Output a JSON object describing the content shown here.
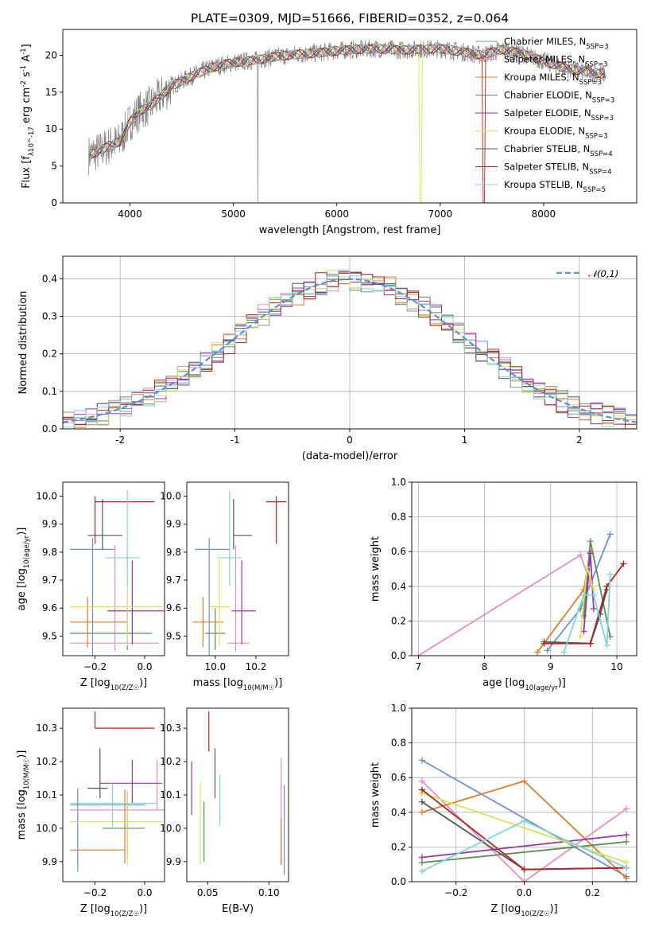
{
  "title": "PLATE=0309, MJD=51666, FIBERID=0352, z=0.064",
  "chart_data": [
    {
      "id": "spectrum",
      "type": "line",
      "xlabel": "wavelength [Angstrom, rest frame]",
      "ylabel": "Flux [f_λ10^-17 erg cm^-2 s^-1 A^-1]",
      "xlim": [
        3350,
        8900
      ],
      "ylim": [
        0,
        23.5
      ],
      "xticks": [
        4000,
        5000,
        6000,
        7000,
        8000
      ],
      "yticks": [
        0,
        5,
        10,
        15,
        20
      ],
      "legend_position": "right",
      "continuum": {
        "x": [
          3600,
          3700,
          3800,
          3900,
          4000,
          4100,
          4200,
          4300,
          4400,
          4600,
          4800,
          5000,
          5200,
          5400,
          5600,
          5800,
          6000,
          6200,
          6400,
          6600,
          6800,
          7000,
          7200,
          7400,
          7600,
          7800,
          8000,
          8200,
          8400,
          8600
        ],
        "y": [
          6.5,
          7.0,
          7.8,
          8.3,
          11.0,
          12.5,
          13.2,
          14.5,
          15.8,
          17.2,
          18.4,
          19.0,
          19.3,
          19.8,
          20.1,
          20.3,
          20.6,
          20.8,
          20.9,
          20.7,
          20.8,
          20.9,
          20.5,
          20.0,
          20.8,
          20.2,
          19.2,
          18.3,
          17.8,
          17.4
        ]
      },
      "series": [
        {
          "name": "Chabrier MILES, N_SSP=3",
          "color": "#6b8fd6"
        },
        {
          "name": "Salpeter MILES, N_SSP=3",
          "color": "#e68fbf"
        },
        {
          "name": "Kroupa MILES, N_SSP=3",
          "color": "#e07b28"
        },
        {
          "name": "Chabrier ELODIE, N_SSP=3",
          "color": "#5e8c5a"
        },
        {
          "name": "Salpeter ELODIE, N_SSP=3",
          "color": "#9933aa"
        },
        {
          "name": "Kroupa ELODIE, N_SSP=3",
          "color": "#d4e657"
        },
        {
          "name": "Chabrier STELIB, N_SSP=4",
          "color": "#555555"
        },
        {
          "name": "Salpeter STELIB, N_SSP=4",
          "color": "#b22222"
        },
        {
          "name": "Kroupa STELIB, N_SSP=5",
          "color": "#7fd6d6"
        }
      ]
    },
    {
      "id": "residuals",
      "type": "histogram",
      "xlabel": "(data-model)/error",
      "ylabel": "Normed distribution",
      "xlim": [
        -2.5,
        2.5
      ],
      "ylim": [
        0,
        0.46
      ],
      "xticks": [
        -2,
        -1,
        0,
        1,
        2
      ],
      "yticks": [
        0.0,
        0.1,
        0.2,
        0.3,
        0.4
      ],
      "grid": true,
      "legend_position": "top-right",
      "reference_curve": "𝒩(0,1)",
      "bin_width": 0.1
    },
    {
      "id": "age-vs-Z",
      "type": "errorbar",
      "xlabel": "Z [log10(Z/Z☉)]",
      "ylabel": "age [log10(age/yr)]",
      "xlim": [
        -0.33,
        0.08
      ],
      "ylim": [
        9.43,
        10.05
      ],
      "xticks": [
        -0.2,
        0.0
      ],
      "yticks": [
        9.5,
        9.6,
        9.7,
        9.8,
        9.9,
        10.0
      ],
      "points": [
        {
          "color": "#6b8fd6",
          "x": -0.21,
          "xerr": [
            0.09,
            0.09
          ],
          "y": 9.81,
          "yerr": [
            0.4,
            0.04
          ]
        },
        {
          "color": "#e68fbf",
          "x": -0.12,
          "xerr": [
            0.18,
            0.18
          ],
          "y": 9.475,
          "yerr": [
            0.03,
            0.35
          ]
        },
        {
          "color": "#e07b28",
          "x": -0.23,
          "xerr": [
            0.07,
            0.16
          ],
          "y": 9.55,
          "yerr": [
            0.09,
            0.09
          ]
        },
        {
          "color": "#5e8c5a",
          "x": -0.07,
          "xerr": [
            0.23,
            0.1
          ],
          "y": 9.51,
          "yerr": [
            0.06,
            0.09
          ]
        },
        {
          "color": "#9933aa",
          "x": -0.05,
          "xerr": [
            0.1,
            0.13
          ],
          "y": 9.59,
          "yerr": [
            0.12,
            0.18
          ]
        },
        {
          "color": "#d4e657",
          "x": -0.07,
          "xerr": [
            0.23,
            0.14
          ],
          "y": 9.605,
          "yerr": [
            0.14,
            0.17
          ]
        },
        {
          "color": "#555555",
          "x": -0.17,
          "xerr": [
            0.06,
            0.08
          ],
          "y": 9.86,
          "yerr": [
            0.05,
            0.13
          ]
        },
        {
          "color": "#b22222",
          "x": -0.2,
          "xerr": [
            0.0,
            0.24
          ],
          "y": 9.98,
          "yerr": [
            0.15,
            0.02
          ]
        },
        {
          "color": "#7fd6d6",
          "x": -0.07,
          "xerr": [
            0.09,
            0.05
          ],
          "y": 9.78,
          "yerr": [
            0.1,
            0.24
          ]
        }
      ]
    },
    {
      "id": "age-vs-mass",
      "type": "errorbar",
      "xlabel": "mass [log10(M/M☉)]",
      "ylabel": "",
      "xlim": [
        9.86,
        10.36
      ],
      "ylim": [
        9.43,
        10.05
      ],
      "xticks": [
        10.0,
        10.2
      ],
      "yticks": [
        9.5,
        9.6,
        9.7,
        9.8,
        9.9,
        10.0
      ],
      "points": [
        {
          "color": "#6b8fd6",
          "x": 9.97,
          "xerr": [
            0.07,
            0.1
          ],
          "y": 9.81,
          "yerr": [
            0.4,
            0.04
          ]
        },
        {
          "color": "#e68fbf",
          "x": 10.1,
          "xerr": [
            0.04,
            0.07
          ],
          "y": 9.475,
          "yerr": [
            0.03,
            0.35
          ]
        },
        {
          "color": "#e07b28",
          "x": 9.94,
          "xerr": [
            0.05,
            0.1
          ],
          "y": 9.55,
          "yerr": [
            0.09,
            0.09
          ]
        },
        {
          "color": "#5e8c5a",
          "x": 10.0,
          "xerr": [
            0.05,
            0.05
          ],
          "y": 9.51,
          "yerr": [
            0.06,
            0.09
          ]
        },
        {
          "color": "#9933aa",
          "x": 10.13,
          "xerr": [
            0.05,
            0.07
          ],
          "y": 9.59,
          "yerr": [
            0.12,
            0.18
          ]
        },
        {
          "color": "#d4e657",
          "x": 10.02,
          "xerr": [
            0.05,
            0.05
          ],
          "y": 9.605,
          "yerr": [
            0.14,
            0.17
          ]
        },
        {
          "color": "#555555",
          "x": 10.09,
          "xerr": [
            0.0,
            0.09
          ],
          "y": 9.86,
          "yerr": [
            0.05,
            0.13
          ]
        },
        {
          "color": "#b22222",
          "x": 10.3,
          "xerr": [
            0.05,
            0.05
          ],
          "y": 9.98,
          "yerr": [
            0.15,
            0.02
          ]
        },
        {
          "color": "#7fd6d6",
          "x": 10.07,
          "xerr": [
            0.06,
            0.06
          ],
          "y": 9.78,
          "yerr": [
            0.1,
            0.24
          ]
        }
      ]
    },
    {
      "id": "massweight-vs-age",
      "type": "line",
      "xlabel": "age [log10(age/yr)]",
      "ylabel": "mass weight",
      "xlim": [
        6.9,
        10.3
      ],
      "ylim": [
        0,
        1
      ],
      "xticks": [
        7,
        8,
        9,
        10
      ],
      "yticks": [
        0.0,
        0.2,
        0.4,
        0.6,
        0.8,
        1.0
      ],
      "grid": true,
      "series": [
        {
          "color": "#6b8fd6",
          "x": [
            8.95,
            9.45,
            9.9
          ],
          "y": [
            0.03,
            0.27,
            0.7
          ]
        },
        {
          "color": "#e68fbf",
          "x": [
            7.0,
            9.45,
            9.6
          ],
          "y": [
            0.0,
            0.58,
            0.42
          ]
        },
        {
          "color": "#e07b28",
          "x": [
            8.8,
            9.5,
            9.6
          ],
          "y": [
            0.02,
            0.38,
            0.6
          ]
        },
        {
          "color": "#5e8c5a",
          "x": [
            9.5,
            9.6,
            9.9
          ],
          "y": [
            0.23,
            0.66,
            0.11
          ]
        },
        {
          "color": "#9933aa",
          "x": [
            9.5,
            9.6,
            9.65
          ],
          "y": [
            0.14,
            0.59,
            0.27
          ]
        },
        {
          "color": "#d4e657",
          "x": [
            9.45,
            9.55,
            9.65
          ],
          "y": [
            0.11,
            0.51,
            0.38
          ]
        },
        {
          "color": "#555555",
          "x": [
            8.9,
            9.6,
            9.75,
            9.85
          ],
          "y": [
            0.08,
            0.07,
            0.24,
            0.38
          ]
        },
        {
          "color": "#b22222",
          "x": [
            8.9,
            9.6,
            9.85,
            10.1
          ],
          "y": [
            0.07,
            0.07,
            0.4,
            0.53
          ]
        },
        {
          "color": "#7fd6d6",
          "x": [
            9.2,
            9.5,
            9.65,
            9.85,
            9.9
          ],
          "y": [
            0.02,
            0.35,
            0.35,
            0.06,
            0.47
          ]
        }
      ]
    },
    {
      "id": "mass-vs-Z",
      "type": "errorbar",
      "xlabel": "Z [log10(Z/Z☉)]",
      "ylabel": "mass [log10(M/M☉)]",
      "xlim": [
        -0.33,
        0.08
      ],
      "ylim": [
        9.84,
        10.36
      ],
      "xticks": [
        -0.2,
        0.0
      ],
      "yticks": [
        9.9,
        10.0,
        10.1,
        10.2,
        10.3
      ],
      "points": [
        {
          "color": "#6b8fd6",
          "x": -0.27,
          "xerr": [
            0.03,
            0.27
          ],
          "y": 10.07,
          "yerr": [
            0.2,
            0.05
          ]
        },
        {
          "color": "#e68fbf",
          "x": 0.05,
          "xerr": [
            0.35,
            0.03
          ],
          "y": 10.055,
          "yerr": [
            0.0,
            0.15
          ]
        },
        {
          "color": "#e07b28",
          "x": -0.08,
          "xerr": [
            0.22,
            0.0
          ],
          "y": 9.935,
          "yerr": [
            0.04,
            0.18
          ]
        },
        {
          "color": "#5e8c5a",
          "x": -0.07,
          "xerr": [
            0.1,
            0.07
          ],
          "y": 10.0,
          "yerr": [
            0.09,
            0.11
          ]
        },
        {
          "color": "#9933aa",
          "x": -0.05,
          "xerr": [
            0.13,
            0.12
          ],
          "y": 10.135,
          "yerr": [
            0.06,
            0.07
          ]
        },
        {
          "color": "#d4e657",
          "x": -0.07,
          "xerr": [
            0.23,
            0.14
          ],
          "y": 10.02,
          "yerr": [
            0.13,
            0.09
          ]
        },
        {
          "color": "#555555",
          "x": -0.18,
          "xerr": [
            0.05,
            0.03
          ],
          "y": 10.12,
          "yerr": [
            0.03,
            0.12
          ]
        },
        {
          "color": "#b22222",
          "x": -0.2,
          "xerr": [
            0.0,
            0.24
          ],
          "y": 10.3,
          "yerr": [
            0.0,
            0.05
          ]
        },
        {
          "color": "#7fd6d6",
          "x": -0.13,
          "xerr": [
            0.17,
            0.18
          ],
          "y": 10.075,
          "yerr": [
            0.07,
            0.06
          ]
        }
      ]
    },
    {
      "id": "mass-vs-ebv",
      "type": "errorbar",
      "xlabel": "E(B-V)",
      "ylabel": "",
      "xlim": [
        0.033,
        0.116
      ],
      "ylim": [
        9.84,
        10.36
      ],
      "xticks": [
        0.05,
        0.1
      ],
      "yticks": [
        9.9,
        10.0,
        10.1,
        10.2,
        10.3
      ],
      "points": [
        {
          "color": "#6b8fd6",
          "x": 0.1125,
          "xerr": [
            0,
            0
          ],
          "y": 10.0,
          "yerr": [
            0.14,
            0.13
          ]
        },
        {
          "color": "#e68fbf",
          "x": 0.11,
          "xerr": [
            0,
            0
          ],
          "y": 10.05,
          "yerr": [
            0.16,
            0.16
          ]
        },
        {
          "color": "#e07b28",
          "x": 0.11,
          "xerr": [
            0,
            0
          ],
          "y": 9.96,
          "yerr": [
            0.07,
            0.07
          ]
        },
        {
          "color": "#5e8c5a",
          "x": 0.047,
          "xerr": [
            0,
            0
          ],
          "y": 9.99,
          "yerr": [
            0.09,
            0.09
          ]
        },
        {
          "color": "#9933aa",
          "x": 0.037,
          "xerr": [
            0,
            0
          ],
          "y": 10.12,
          "yerr": [
            0.08,
            0.08
          ]
        },
        {
          "color": "#d4e657",
          "x": 0.044,
          "xerr": [
            0,
            0
          ],
          "y": 10.02,
          "yerr": [
            0.13,
            0.12
          ]
        },
        {
          "color": "#555555",
          "x": 0.056,
          "xerr": [
            0,
            0
          ],
          "y": 10.15,
          "yerr": [
            0.06,
            0.09
          ]
        },
        {
          "color": "#b22222",
          "x": 0.051,
          "xerr": [
            0,
            0
          ],
          "y": 10.3,
          "yerr": [
            0.07,
            0.05
          ]
        },
        {
          "color": "#7fd6d6",
          "x": 0.06,
          "xerr": [
            0,
            0
          ],
          "y": 10.09,
          "yerr": [
            0.08,
            0.07
          ]
        }
      ]
    },
    {
      "id": "massweight-vs-Z",
      "type": "line",
      "xlabel": "Z [log10(Z/Z☉)]",
      "ylabel": "mass weight",
      "xlim": [
        -0.33,
        0.33
      ],
      "ylim": [
        0,
        1
      ],
      "xticks": [
        -0.2,
        0.0,
        0.2
      ],
      "yticks": [
        0.0,
        0.2,
        0.4,
        0.6,
        0.8,
        1.0
      ],
      "grid": true,
      "series": [
        {
          "color": "#6b8fd6",
          "x": [
            -0.3,
            0.3
          ],
          "y": [
            0.7,
            0.03
          ]
        },
        {
          "color": "#e68fbf",
          "x": [
            -0.3,
            0.0,
            0.3
          ],
          "y": [
            0.58,
            0.0,
            0.42
          ]
        },
        {
          "color": "#e07b28",
          "x": [
            -0.3,
            0.0,
            0.3
          ],
          "y": [
            0.4,
            0.58,
            0.02
          ]
        },
        {
          "color": "#5e8c5a",
          "x": [
            -0.3,
            0.3
          ],
          "y": [
            0.11,
            0.23
          ]
        },
        {
          "color": "#9933aa",
          "x": [
            -0.3,
            0.3
          ],
          "y": [
            0.14,
            0.27
          ]
        },
        {
          "color": "#d4e657",
          "x": [
            -0.3,
            0.3
          ],
          "y": [
            0.51,
            0.11
          ]
        },
        {
          "color": "#555555",
          "x": [
            -0.3,
            0.0,
            0.3
          ],
          "y": [
            0.46,
            0.07,
            0.08
          ]
        },
        {
          "color": "#b22222",
          "x": [
            -0.3,
            0.0,
            0.3
          ],
          "y": [
            0.53,
            0.07,
            0.08
          ]
        },
        {
          "color": "#7fd6d6",
          "x": [
            -0.3,
            0.0,
            0.3
          ],
          "y": [
            0.06,
            0.35,
            0.08
          ]
        }
      ]
    }
  ]
}
